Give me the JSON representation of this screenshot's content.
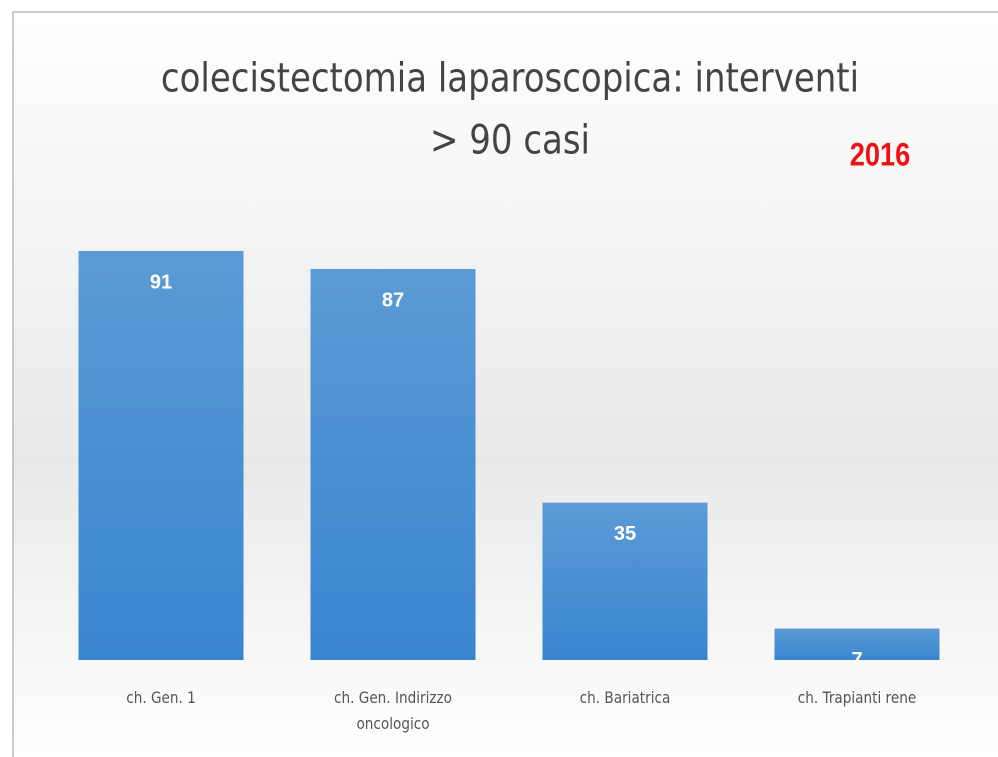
{
  "chart_data": {
    "type": "bar",
    "title": [
      "colecistectomia laparoscopica:  interventi",
      "> 90 casi"
    ],
    "annotation": "2016",
    "categories": [
      "ch. Gen. 1",
      "ch. Gen. Indirizzo oncologico",
      "ch. Bariatrica",
      "ch. Trapianti rene"
    ],
    "values": [
      91,
      87,
      35,
      7
    ],
    "color": "#5b9bd5"
  }
}
